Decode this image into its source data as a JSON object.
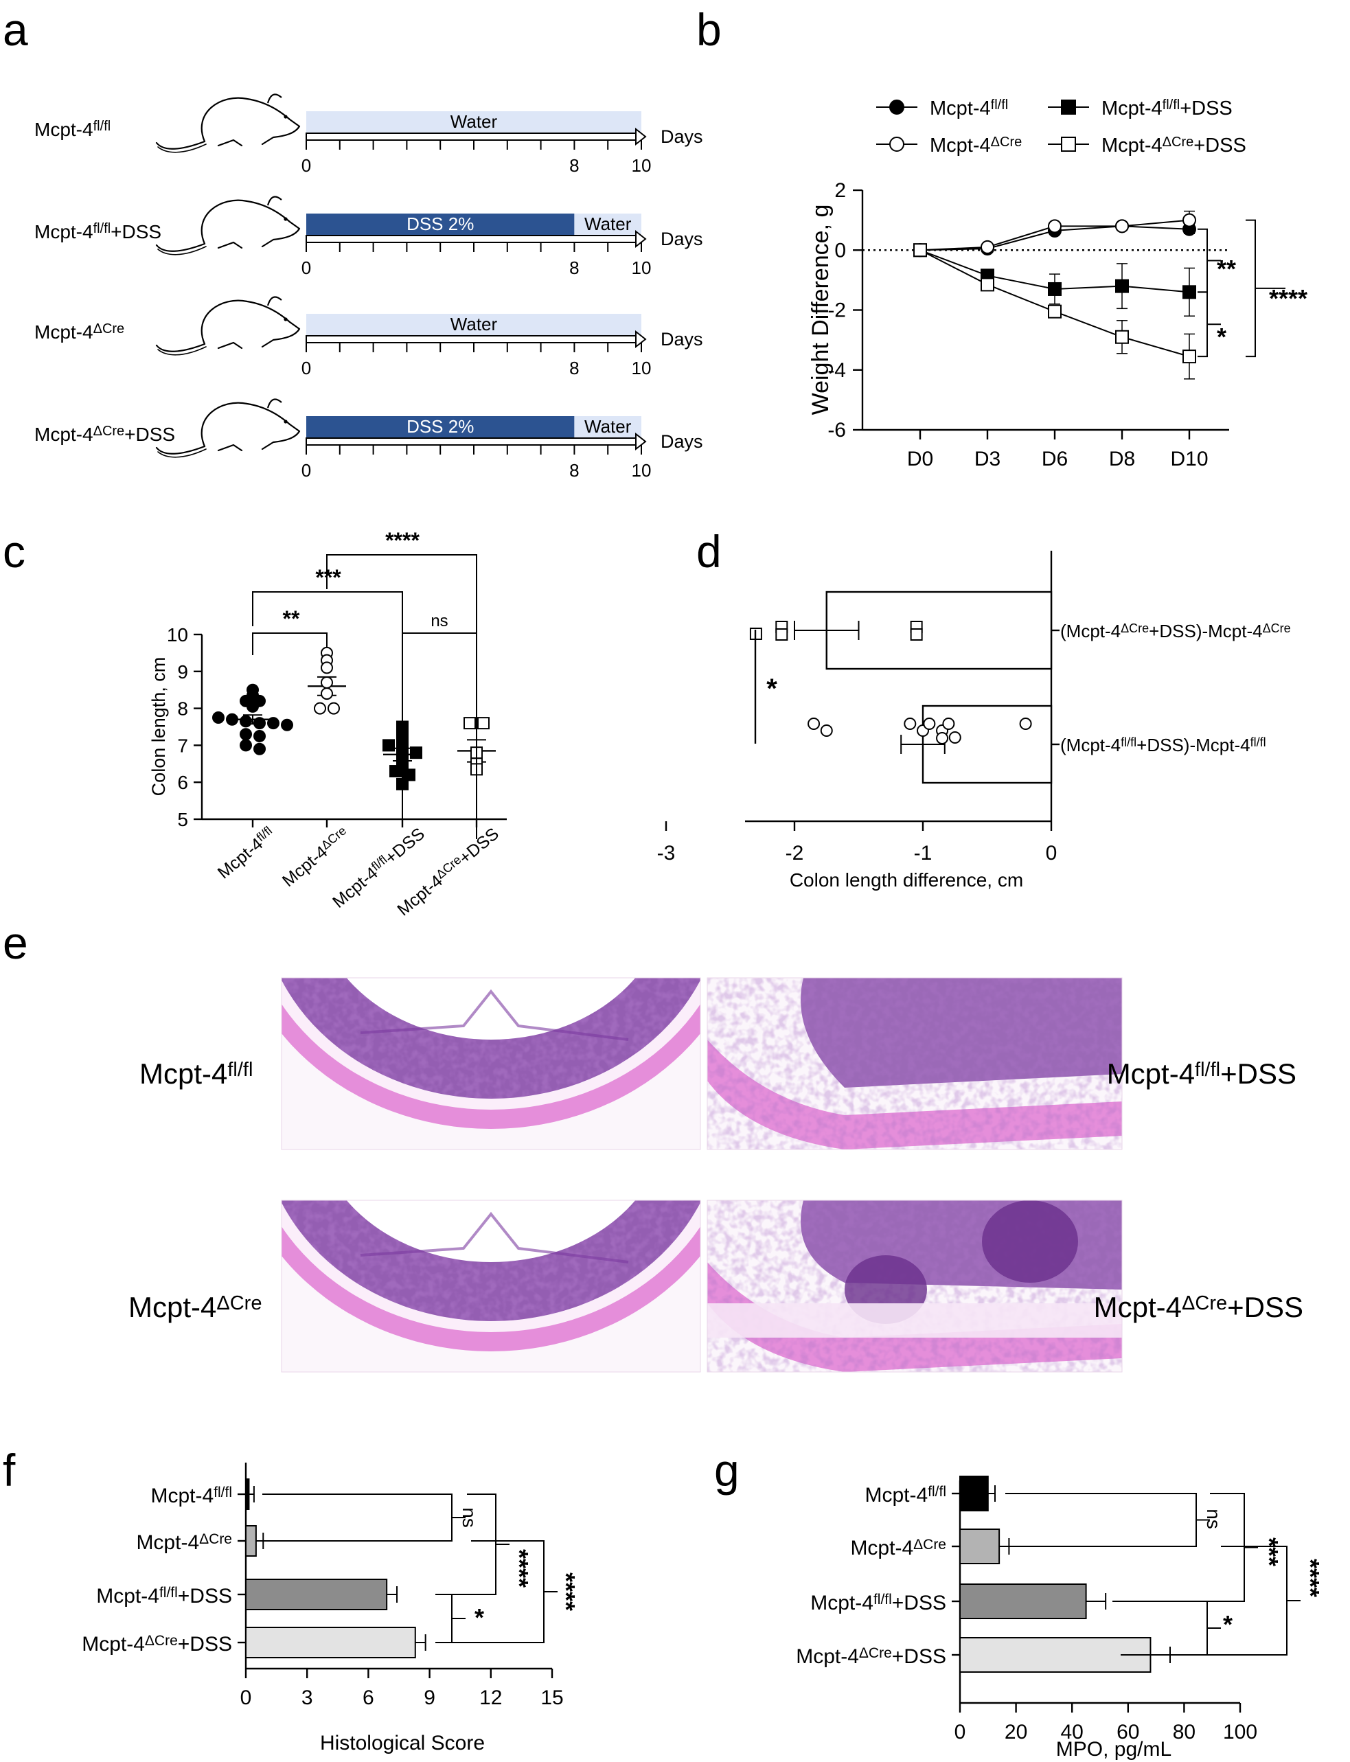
{
  "panels": {
    "a": {
      "letter": "a",
      "x_unit": "Days",
      "groups": [
        {
          "base": "Mcpt-4",
          "sup": "fl/fl",
          "suffix": "",
          "segments": [
            {
              "label": "Water",
              "from": 0,
              "to": 10,
              "kind": "water"
            }
          ],
          "ticks": [
            "0",
            "8",
            "10"
          ]
        },
        {
          "base": "Mcpt-4",
          "sup": "fl/fl",
          "suffix": "+DSS",
          "segments": [
            {
              "label": "DSS 2%",
              "from": 0,
              "to": 8,
              "kind": "dss"
            },
            {
              "label": "Water",
              "from": 8,
              "to": 10,
              "kind": "water"
            }
          ],
          "ticks": [
            "0",
            "8",
            "10"
          ]
        },
        {
          "base": "Mcpt-4",
          "sup": "ΔCre",
          "suffix": "",
          "segments": [
            {
              "label": "Water",
              "from": 0,
              "to": 10,
              "kind": "water"
            }
          ],
          "ticks": [
            "0",
            "8",
            "10"
          ]
        },
        {
          "base": "Mcpt-4",
          "sup": "ΔCre",
          "suffix": "+DSS",
          "segments": [
            {
              "label": "DSS 2%",
              "from": 0,
              "to": 8,
              "kind": "dss"
            },
            {
              "label": "Water",
              "from": 8,
              "to": 10,
              "kind": "water"
            }
          ],
          "ticks": [
            "0",
            "8",
            "10"
          ]
        }
      ]
    },
    "e": {
      "letter": "e",
      "labels": [
        {
          "base": "Mcpt-4",
          "sup": "fl/fl",
          "suffix": ""
        },
        {
          "base": "Mcpt-4",
          "sup": "fl/fl",
          "suffix": "+DSS"
        },
        {
          "base": "Mcpt-4",
          "sup": "ΔCre",
          "suffix": ""
        },
        {
          "base": "Mcpt-4",
          "sup": "ΔCre",
          "suffix": "+DSS"
        }
      ]
    }
  },
  "colors": {
    "dss": "#2c5391",
    "water": "#dde6f7",
    "bar_fl": "#000000",
    "bar_cre": "#b3b3b3",
    "bar_fl_dss": "#8c8c8c",
    "bar_cre_dss": "#e3e3e3",
    "he_stain": "#e07bd3",
    "he_nuclei": "#7b3aa0"
  },
  "chart_data": [
    {
      "panel": "b",
      "type": "line",
      "letter": "b",
      "ylabel": "Weight Difference, g",
      "categories": [
        "D0",
        "D3",
        "D6",
        "D8",
        "D10"
      ],
      "ylim": [
        -6,
        2
      ],
      "yticks": [
        "2",
        "0",
        "-2",
        "-4",
        "-6"
      ],
      "reference_line": 0,
      "legend_position": "top",
      "series": [
        {
          "base": "Mcpt-4",
          "sup": "fl/fl",
          "suffix": "",
          "marker": "circle-filled",
          "values": [
            0,
            0.05,
            0.65,
            0.8,
            0.7
          ],
          "err": [
            0,
            0.05,
            0.1,
            0.1,
            0.15
          ]
        },
        {
          "base": "Mcpt-4",
          "sup": "ΔCre",
          "suffix": "",
          "marker": "circle-open",
          "values": [
            0,
            0.1,
            0.8,
            0.8,
            1.0
          ],
          "err": [
            0,
            0.05,
            0.1,
            0.1,
            0.3
          ]
        },
        {
          "base": "Mcpt-4",
          "sup": "fl/fl",
          "suffix": "+DSS",
          "marker": "square-filled",
          "values": [
            0,
            -0.85,
            -1.3,
            -1.2,
            -1.4
          ],
          "err": [
            0,
            0.2,
            0.5,
            0.75,
            0.8
          ]
        },
        {
          "base": "Mcpt-4",
          "sup": "ΔCre",
          "suffix": "+DSS",
          "marker": "square-open",
          "values": [
            0,
            -1.15,
            -2.05,
            -2.9,
            -3.55
          ],
          "err": [
            0,
            0.2,
            0.2,
            0.55,
            0.75
          ]
        }
      ],
      "significance": [
        {
          "label": "**",
          "between": [
            0,
            2
          ]
        },
        {
          "label": "*",
          "between": [
            2,
            3
          ]
        },
        {
          "label": "****",
          "between": [
            0,
            3
          ]
        }
      ]
    },
    {
      "panel": "c",
      "type": "scatter",
      "letter": "c",
      "ylabel": "Colon length,  cm",
      "ylim": [
        5,
        10
      ],
      "yticks": [
        "10",
        "9",
        "8",
        "7",
        "6",
        "5"
      ],
      "groups": [
        {
          "base": "Mcpt-4",
          "sup": "fl/fl",
          "suffix": "",
          "marker": "circle-filled",
          "mean": 7.7,
          "sem": 0.12,
          "values": [
            8.5,
            8.35,
            8.2,
            8.2,
            8.05,
            7.75,
            7.7,
            7.65,
            7.6,
            7.6,
            7.55,
            7.3,
            7.25,
            7.0,
            6.9
          ]
        },
        {
          "base": "Mcpt-4",
          "sup": "ΔCre",
          "suffix": "",
          "marker": "circle-open",
          "mean": 8.6,
          "sem": 0.25,
          "values": [
            9.5,
            9.3,
            9.1,
            8.7,
            8.4,
            8.0,
            8.0
          ]
        },
        {
          "base": "Mcpt-4",
          "sup": "fl/fl",
          "suffix": "+DSS",
          "marker": "square-filled",
          "mean": 6.75,
          "sem": 0.17,
          "values": [
            7.5,
            7.2,
            7.0,
            6.9,
            6.8,
            6.6,
            6.45,
            6.3,
            6.2,
            5.95
          ]
        },
        {
          "base": "Mcpt-4",
          "sup": "ΔCre",
          "suffix": "+DSS",
          "marker": "square-open",
          "mean": 6.85,
          "sem": 0.3,
          "values": [
            7.6,
            7.6,
            6.8,
            6.5,
            6.35
          ]
        }
      ],
      "significance": [
        {
          "label": "**",
          "between": [
            0,
            1
          ]
        },
        {
          "label": "***",
          "between": [
            0,
            2
          ]
        },
        {
          "label": "ns",
          "between": [
            2,
            3
          ]
        },
        {
          "label": "****",
          "between": [
            1,
            3
          ]
        }
      ]
    },
    {
      "panel": "d",
      "type": "bar",
      "orientation": "horizontal",
      "letter": "d",
      "xlabel": "Colon length difference, cm",
      "xlim": [
        -3.5,
        0
      ],
      "xticks": [
        "-3",
        "-2",
        "-1",
        "0"
      ],
      "categories": [
        {
          "open": "(",
          "base1": "Mcpt-4",
          "sup1": "ΔCre",
          "mid": "+DSS)-",
          "base2": "Mcpt-4",
          "sup2": "ΔCre"
        },
        {
          "open": "(",
          "base1": "Mcpt-4",
          "sup1": "fl/fl",
          "mid": "+DSS)-",
          "base2": "Mcpt-4",
          "sup2": "fl/fl"
        }
      ],
      "values": [
        -1.75,
        -1.0
      ],
      "err": [
        0.25,
        0.17
      ],
      "points": [
        {
          "marker": "square-open",
          "values": [
            -2.3,
            -2.1,
            -2.1,
            -1.05,
            -1.05
          ]
        },
        {
          "marker": "circle-open",
          "values": [
            -1.85,
            -1.75,
            -1.1,
            -1.0,
            -0.95,
            -0.85,
            -0.85,
            -0.8,
            -0.75,
            -0.2
          ]
        }
      ],
      "significance": [
        {
          "label": "*",
          "between": [
            0,
            1
          ]
        }
      ]
    },
    {
      "panel": "f",
      "type": "bar",
      "orientation": "horizontal",
      "letter": "f",
      "xlabel": "Histological Score",
      "xlim": [
        0,
        15
      ],
      "xticks": [
        "0",
        "3",
        "6",
        "9",
        "12",
        "15"
      ],
      "categories": [
        {
          "base": "Mcpt-4",
          "sup": "fl/fl",
          "suffix": ""
        },
        {
          "base": "Mcpt-4",
          "sup": "ΔCre",
          "suffix": ""
        },
        {
          "base": "Mcpt-4",
          "sup": "fl/fl",
          "suffix": "+DSS"
        },
        {
          "base": "Mcpt-4",
          "sup": "ΔCre",
          "suffix": "+DSS"
        }
      ],
      "values": [
        0.15,
        0.5,
        6.9,
        8.3
      ],
      "err": [
        0.25,
        0.35,
        0.5,
        0.5
      ],
      "significance": [
        {
          "label": "ns",
          "between": [
            0,
            1
          ]
        },
        {
          "label": "*",
          "between": [
            2,
            3
          ]
        },
        {
          "label": "****",
          "between": [
            0,
            2
          ]
        },
        {
          "label": "****",
          "between": [
            1,
            3
          ]
        }
      ]
    },
    {
      "panel": "g",
      "type": "bar",
      "orientation": "horizontal",
      "letter": "g",
      "xlabel": "MPO,  pg/mL",
      "xlim": [
        0,
        100
      ],
      "xticks": [
        "0",
        "20",
        "40",
        "60",
        "80",
        "100"
      ],
      "categories": [
        {
          "base": "Mcpt-4",
          "sup": "fl/fl",
          "suffix": ""
        },
        {
          "base": "Mcpt-4",
          "sup": "ΔCre",
          "suffix": ""
        },
        {
          "base": "Mcpt-4",
          "sup": "fl/fl",
          "suffix": "+DSS"
        },
        {
          "base": "Mcpt-4",
          "sup": "ΔCre",
          "suffix": "+DSS"
        }
      ],
      "values": [
        10,
        14,
        45,
        68
      ],
      "err": [
        2.5,
        3.5,
        7,
        7
      ],
      "significance": [
        {
          "label": "ns",
          "between": [
            0,
            1
          ]
        },
        {
          "label": "*",
          "between": [
            2,
            3
          ]
        },
        {
          "label": "***",
          "between": [
            0,
            2
          ]
        },
        {
          "label": "****",
          "between": [
            1,
            3
          ]
        }
      ]
    }
  ]
}
